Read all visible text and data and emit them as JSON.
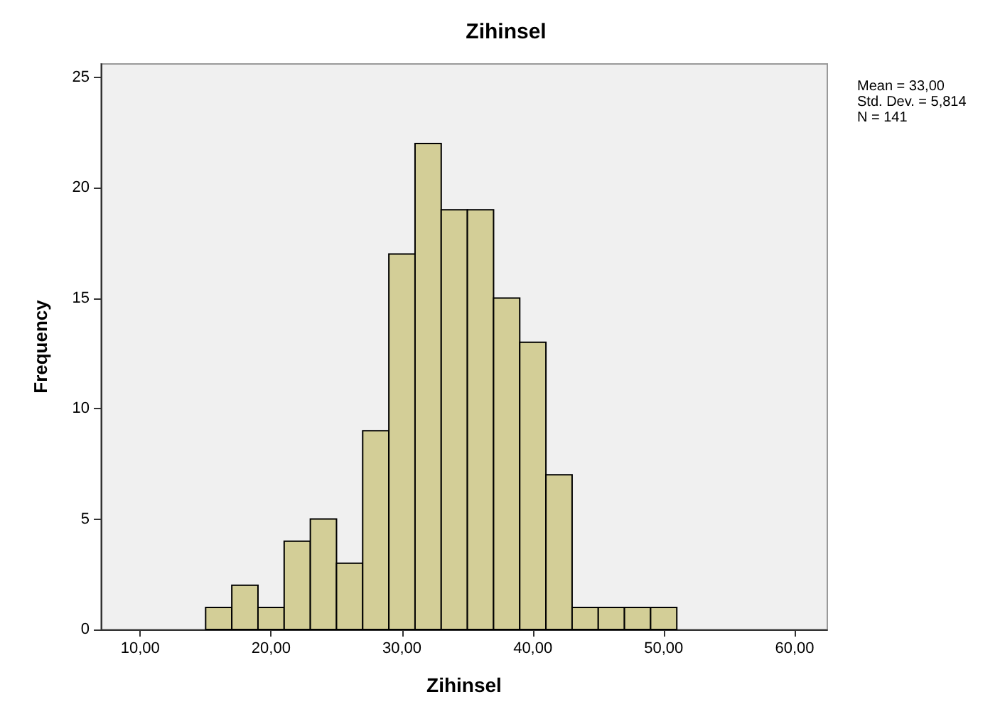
{
  "chart_data": {
    "type": "histogram",
    "title": "Zihinsel",
    "xlabel": "Zihinsel",
    "ylabel": "Frequency",
    "bins": [
      15,
      17,
      19,
      21,
      23,
      25,
      27,
      29,
      31,
      33,
      35,
      37,
      39,
      41,
      43,
      45,
      47,
      49,
      51
    ],
    "values": [
      1,
      2,
      1,
      4,
      5,
      3,
      9,
      17,
      22,
      19,
      19,
      15,
      13,
      7,
      1,
      1,
      1,
      1
    ],
    "color": "#d3ce97",
    "xlim": [
      7,
      62.5
    ],
    "xticks": [
      {
        "value": 10,
        "label": "10,00"
      },
      {
        "value": 20,
        "label": "20,00"
      },
      {
        "value": 30,
        "label": "30,00"
      },
      {
        "value": 40,
        "label": "40,00"
      },
      {
        "value": 50,
        "label": "50,00"
      },
      {
        "value": 60,
        "label": "60,00"
      }
    ],
    "ylim": [
      0,
      25.6
    ],
    "yticks": [
      0,
      5,
      10,
      15,
      20,
      25
    ],
    "grid": false,
    "annotations": [
      "Mean = 33,00",
      "Std. Dev. = 5,814",
      "N = 141"
    ]
  }
}
